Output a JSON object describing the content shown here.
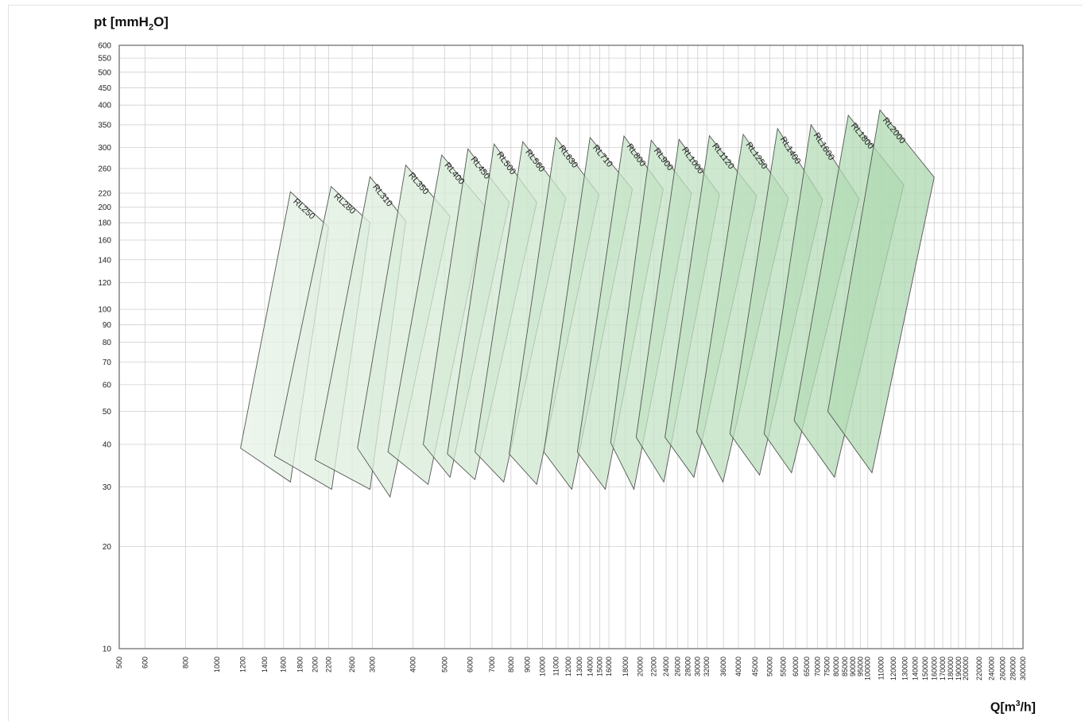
{
  "chart_data": {
    "type": "area",
    "title": "",
    "ylabel": {
      "main": "pt [mmH",
      "sub": "2",
      "end": "O]"
    },
    "xlabel": {
      "main": "Q[m",
      "sup": "3",
      "end": "/h]"
    },
    "y_scale": "log",
    "x_scale": "log",
    "ylim": [
      10,
      600
    ],
    "xlim": [
      500,
      300000
    ],
    "grid": true,
    "y_ticks": [
      10,
      20,
      30,
      40,
      50,
      60,
      70,
      80,
      90,
      100,
      120,
      140,
      160,
      180,
      200,
      220,
      260,
      300,
      350,
      400,
      450,
      500,
      550,
      600
    ],
    "x_ticks": [
      500,
      600,
      800,
      1000,
      1200,
      1400,
      1600,
      1800,
      2000,
      2200,
      2600,
      3000,
      4000,
      5000,
      6000,
      7000,
      8000,
      9000,
      10000,
      11000,
      12000,
      13000,
      14000,
      15000,
      16000,
      18000,
      20000,
      22000,
      24000,
      26000,
      28000,
      30000,
      32000,
      36000,
      40000,
      45000,
      50000,
      55000,
      60000,
      65000,
      70000,
      75000,
      80000,
      85000,
      90000,
      95000,
      100000,
      110000,
      120000,
      130000,
      140000,
      150000,
      160000,
      170000,
      180000,
      190000,
      200000,
      220000,
      240000,
      260000,
      280000,
      300000
    ],
    "color_light": "#f2f7f1",
    "color_dark": "#a3d4a6",
    "edge_color": "#555555",
    "series": [
      {
        "name": "RL250",
        "points": [
          [
            1180,
            39
          ],
          [
            1680,
            222
          ],
          [
            2200,
            175
          ],
          [
            1680,
            31
          ]
        ]
      },
      {
        "name": "RL280",
        "points": [
          [
            1500,
            37
          ],
          [
            2240,
            230
          ],
          [
            2950,
            180
          ],
          [
            2250,
            29.5
          ]
        ]
      },
      {
        "name": "RL310",
        "points": [
          [
            2000,
            36
          ],
          [
            2950,
            246
          ],
          [
            3800,
            182
          ],
          [
            2950,
            29.5
          ]
        ]
      },
      {
        "name": "RL350",
        "points": [
          [
            2700,
            39
          ],
          [
            3800,
            266
          ],
          [
            5200,
            188
          ],
          [
            3400,
            28
          ]
        ]
      },
      {
        "name": "RL400",
        "points": [
          [
            3350,
            38
          ],
          [
            4900,
            285
          ],
          [
            6700,
            200
          ],
          [
            4450,
            30.5
          ]
        ]
      },
      {
        "name": "RL450",
        "points": [
          [
            4300,
            40
          ],
          [
            5900,
            297
          ],
          [
            7900,
            207
          ],
          [
            5200,
            32
          ]
        ]
      },
      {
        "name": "RL500",
        "points": [
          [
            5100,
            37.5
          ],
          [
            7100,
            307
          ],
          [
            9600,
            207
          ],
          [
            6200,
            31.5
          ]
        ]
      },
      {
        "name": "RL560",
        "points": [
          [
            6200,
            38
          ],
          [
            8700,
            312
          ],
          [
            11800,
            213
          ],
          [
            7600,
            31
          ]
        ]
      },
      {
        "name": "RL630",
        "points": [
          [
            7900,
            37.5
          ],
          [
            11000,
            321
          ],
          [
            14900,
            218
          ],
          [
            9600,
            30.5
          ]
        ]
      },
      {
        "name": "RL710",
        "points": [
          [
            10100,
            38
          ],
          [
            14000,
            321
          ],
          [
            18900,
            226
          ],
          [
            12300,
            29.5
          ]
        ]
      },
      {
        "name": "RL800",
        "points": [
          [
            12800,
            38
          ],
          [
            17800,
            324
          ],
          [
            23500,
            226
          ],
          [
            15600,
            29.5
          ]
        ]
      },
      {
        "name": "RL900",
        "points": [
          [
            16200,
            40.5
          ],
          [
            21600,
            315
          ],
          [
            28700,
            220
          ],
          [
            19100,
            29.5
          ]
        ]
      },
      {
        "name": "RL1000",
        "points": [
          [
            19400,
            42
          ],
          [
            26300,
            317
          ],
          [
            35000,
            218
          ],
          [
            23600,
            31
          ]
        ]
      },
      {
        "name": "RL1120",
        "points": [
          [
            23800,
            42
          ],
          [
            32600,
            325
          ],
          [
            45500,
            216
          ],
          [
            29200,
            32
          ]
        ]
      },
      {
        "name": "RL1250",
        "points": [
          [
            29800,
            43.5
          ],
          [
            41400,
            328
          ],
          [
            57000,
            213
          ],
          [
            35900,
            31
          ]
        ]
      },
      {
        "name": "RL1400",
        "points": [
          [
            37700,
            43
          ],
          [
            52800,
            341
          ],
          [
            72600,
            211
          ],
          [
            46500,
            32.5
          ]
        ]
      },
      {
        "name": "RL1600",
        "points": [
          [
            48000,
            43
          ],
          [
            66900,
            350
          ],
          [
            94000,
            212
          ],
          [
            58300,
            33
          ]
        ]
      },
      {
        "name": "RL1800",
        "points": [
          [
            59400,
            47
          ],
          [
            87100,
            373
          ],
          [
            129000,
            233
          ],
          [
            79000,
            32
          ]
        ]
      },
      {
        "name": "RL2000",
        "points": [
          [
            75400,
            50
          ],
          [
            109000,
            387
          ],
          [
            160000,
            245
          ],
          [
            103000,
            33
          ]
        ]
      }
    ]
  }
}
